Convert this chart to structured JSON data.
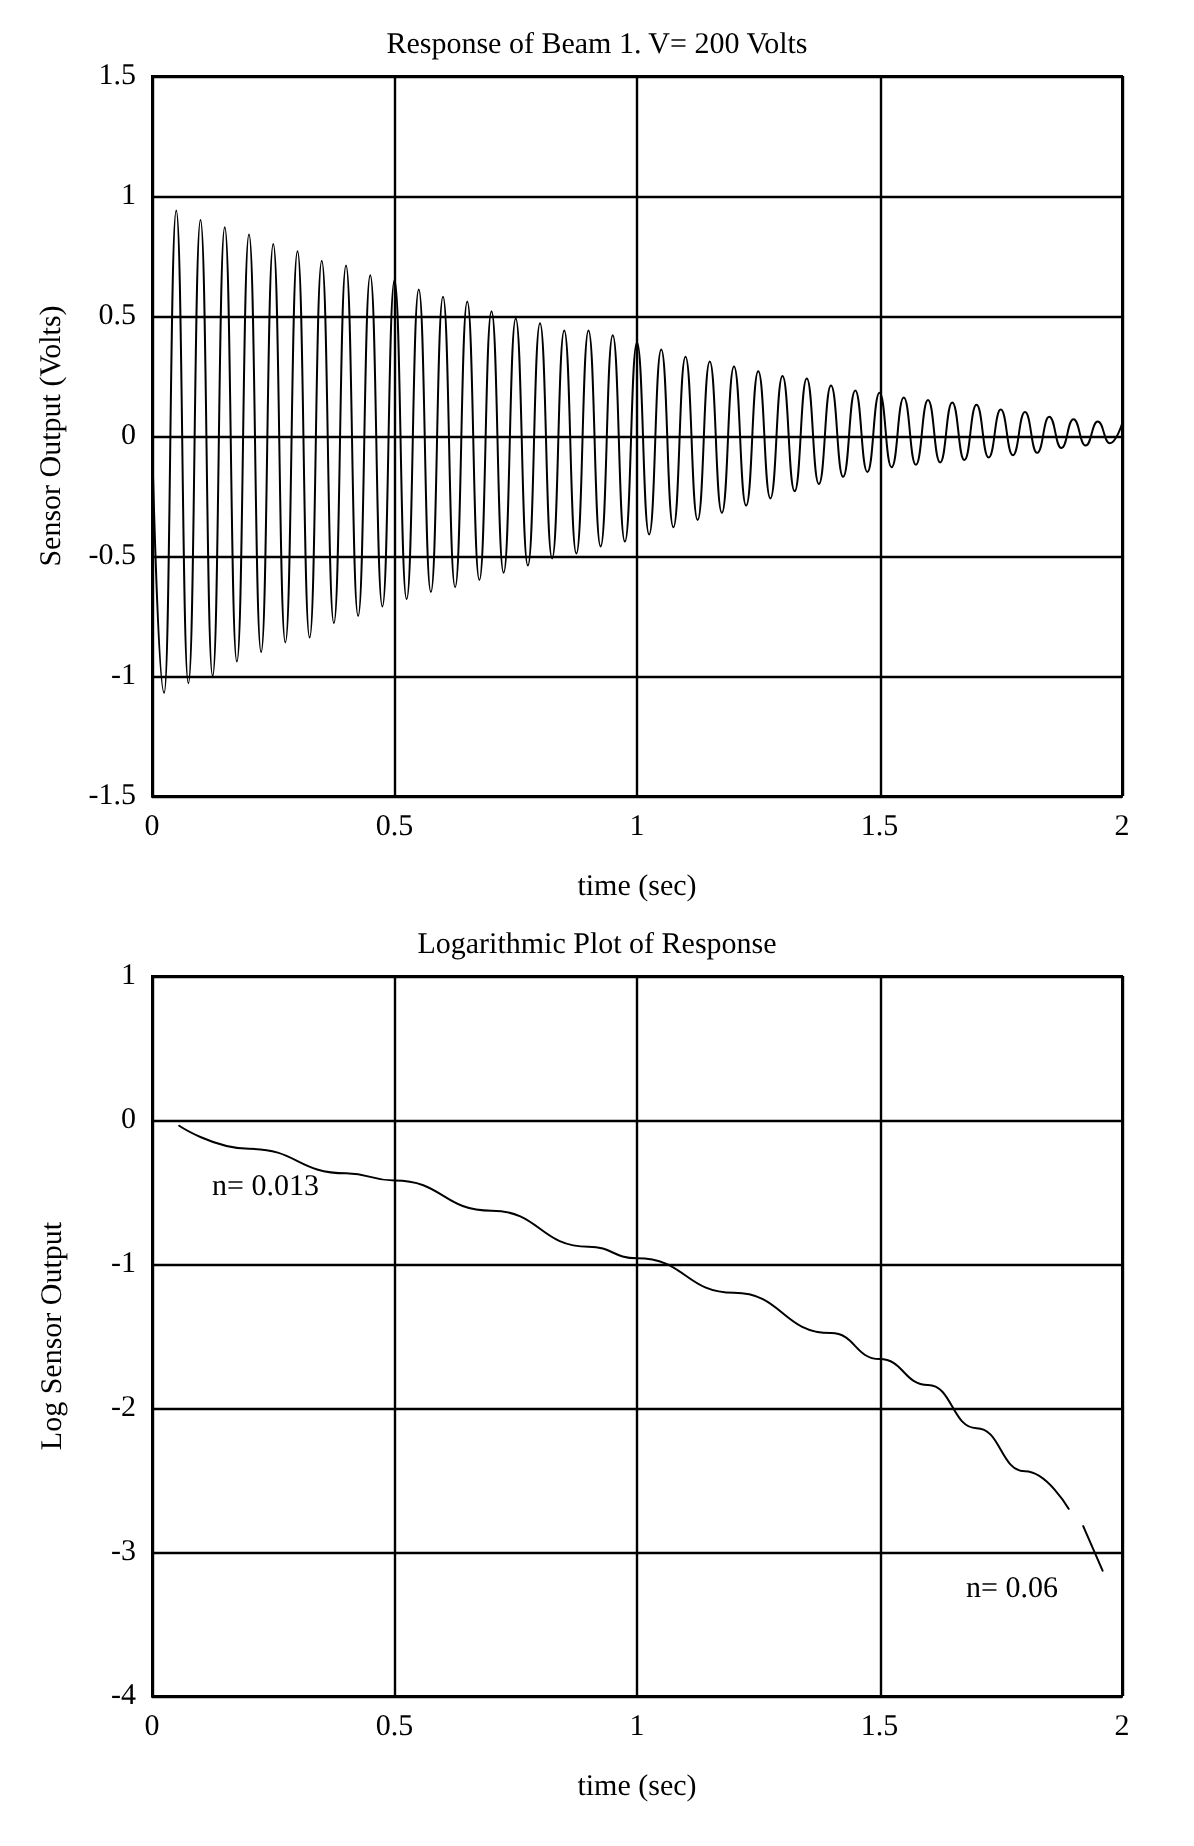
{
  "chart_data": [
    {
      "type": "line",
      "title": "Response of Beam 1. V= 200 Volts",
      "xlabel": "time (sec)",
      "ylabel": "Sensor Output (Volts)",
      "x": [
        0,
        0.025,
        0.05,
        0.075,
        0.1,
        0.125,
        0.15,
        0.175,
        0.2,
        0.225,
        0.25,
        0.275,
        0.3,
        0.325,
        0.35,
        0.375,
        0.4,
        0.425,
        0.45,
        0.475,
        0.5,
        0.525,
        0.55,
        0.575,
        0.6,
        0.625,
        0.65,
        0.675,
        0.7,
        0.725,
        0.75,
        0.775,
        0.8,
        0.825,
        0.85,
        0.875,
        0.9,
        0.925,
        0.95,
        0.975,
        1,
        1.025,
        1.05,
        1.075,
        1.1,
        1.125,
        1.15,
        1.175,
        1.2,
        1.225,
        1.25,
        1.275,
        1.3,
        1.325,
        1.35,
        1.375,
        1.4,
        1.425,
        1.45,
        1.475,
        1.5,
        1.525,
        1.55,
        1.575,
        1.6,
        1.625,
        1.65,
        1.675,
        1.7,
        1.725,
        1.75,
        1.775,
        1.8,
        1.825,
        1.85,
        1.875,
        1.9,
        1.925,
        1.95,
        1.975,
        2
      ],
      "series": [
        {
          "color": "#000000",
          "values": [
            0,
            -1.07,
            0.94,
            -1.03,
            0.9,
            -1.0,
            0.87,
            -0.94,
            0.84,
            -0.9,
            0.8,
            -0.86,
            0.77,
            -0.84,
            0.73,
            -0.78,
            0.71,
            -0.75,
            0.67,
            -0.71,
            0.65,
            -0.68,
            0.61,
            -0.65,
            0.58,
            -0.63,
            0.56,
            -0.6,
            0.52,
            -0.57,
            0.49,
            -0.54,
            0.47,
            -0.51,
            0.44,
            -0.49,
            0.44,
            -0.46,
            0.42,
            -0.44,
            0.39,
            -0.41,
            0.36,
            -0.38,
            0.33,
            -0.35,
            0.31,
            -0.32,
            0.29,
            -0.29,
            0.27,
            -0.26,
            0.25,
            -0.23,
            0.24,
            -0.2,
            0.21,
            -0.17,
            0.19,
            -0.15,
            0.18,
            -0.13,
            0.16,
            -0.12,
            0.15,
            -0.11,
            0.14,
            -0.1,
            0.13,
            -0.09,
            0.11,
            -0.08,
            0.1,
            -0.07,
            0.08,
            -0.05,
            0.07,
            -0.04,
            0.06,
            -0.03,
            0.05
          ]
        }
      ],
      "xlim": [
        0,
        2
      ],
      "xticks": [
        0,
        0.5,
        1,
        1.5,
        2
      ],
      "ylim": [
        -1.5,
        1.5
      ],
      "yticks": [
        -1.5,
        -1,
        -0.5,
        0,
        0.5,
        1,
        1.5
      ],
      "grid": true,
      "line_style": "solid"
    },
    {
      "type": "line",
      "title": "Logarithmic Plot of Response",
      "xlabel": "time (sec)",
      "ylabel": "Log Sensor Output",
      "x": [
        0.056,
        0.2,
        0.4,
        0.5,
        0.7,
        0.9,
        1.0,
        1.2,
        1.4,
        1.5,
        1.6,
        1.7,
        1.8,
        1.89,
        1.91,
        1.92,
        1.96
      ],
      "series": [
        {
          "color": "#000000",
          "values": [
            -0.04,
            -0.2,
            -0.37,
            -0.42,
            -0.63,
            -0.88,
            -0.96,
            -1.2,
            -1.48,
            -1.66,
            -1.84,
            -2.14,
            -2.44,
            -2.7,
            null,
            -2.82,
            -3.13
          ]
        }
      ],
      "annotations": [
        "n= 0.013",
        "n= 0.06"
      ],
      "xlim": [
        0,
        2
      ],
      "xticks": [
        0,
        0.5,
        1,
        1.5,
        2
      ],
      "ylim": [
        -4,
        1
      ],
      "yticks": [
        -4,
        -3,
        -2,
        -1,
        0,
        1
      ],
      "grid": true,
      "line_style": "solid"
    }
  ]
}
